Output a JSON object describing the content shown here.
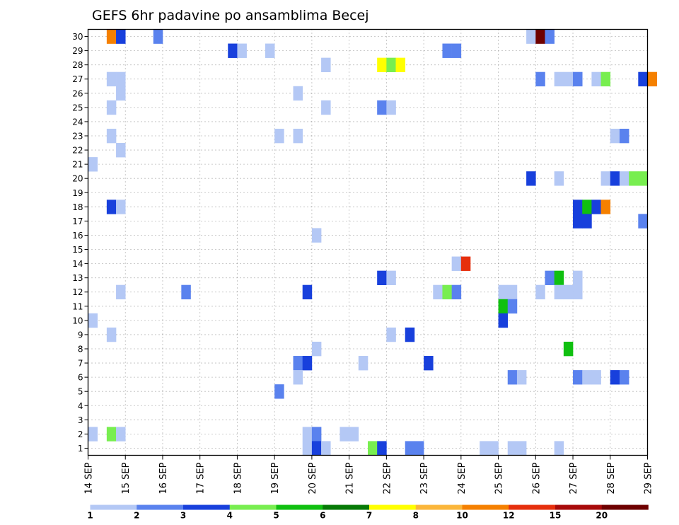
{
  "chart_data": {
    "type": "heatmap",
    "title": "GEFS 6hr padavine po ansamblima Becej",
    "xlabel": "",
    "ylabel": "",
    "x_range_days": [
      14,
      29
    ],
    "x_tick_labels": [
      "14 SEP",
      "15 SEP",
      "16 SEP",
      "17 SEP",
      "18 SEP",
      "19 SEP",
      "20 SEP",
      "21 SEP",
      "22 SEP",
      "23 SEP",
      "24 SEP",
      "25 SEP",
      "26 SEP",
      "27 SEP",
      "28 SEP",
      "29 SEP"
    ],
    "y_range": [
      1,
      30
    ],
    "y_tick_labels": [
      "1",
      "2",
      "3",
      "4",
      "5",
      "6",
      "7",
      "8",
      "9",
      "10",
      "11",
      "12",
      "13",
      "14",
      "15",
      "16",
      "17",
      "18",
      "19",
      "20",
      "21",
      "22",
      "23",
      "24",
      "25",
      "26",
      "27",
      "28",
      "29",
      "30"
    ],
    "grid": true,
    "legend": "bottom colorbar",
    "color_levels": [
      {
        "from": 1,
        "to": 2,
        "color": "#b4c8f5"
      },
      {
        "from": 2,
        "to": 3,
        "color": "#5a82ee"
      },
      {
        "from": 3,
        "to": 4,
        "color": "#1840dc"
      },
      {
        "from": 4,
        "to": 5,
        "color": "#78ee50"
      },
      {
        "from": 5,
        "to": 6,
        "color": "#10c010"
      },
      {
        "from": 6,
        "to": 7,
        "color": "#067a06"
      },
      {
        "from": 7,
        "to": 8,
        "color": "#ffff00"
      },
      {
        "from": 8,
        "to": 10,
        "color": "#fbb63a"
      },
      {
        "from": 10,
        "to": 12,
        "color": "#f58000"
      },
      {
        "from": 12,
        "to": 15,
        "color": "#e62f0d"
      },
      {
        "from": 15,
        "to": 20,
        "color": "#a80a0a"
      },
      {
        "from": 20,
        "to": 30,
        "color": "#6e0000"
      }
    ],
    "colorbar_labels": [
      "1",
      "2",
      "3",
      "4",
      "5",
      "6",
      "7",
      "8",
      "10",
      "12",
      "15",
      "20"
    ],
    "cells": [
      {
        "m": 30,
        "d": 14.5,
        "l": 9
      },
      {
        "m": 30,
        "d": 14.75,
        "l": 3
      },
      {
        "m": 30,
        "d": 15.75,
        "l": 2
      },
      {
        "m": 30,
        "d": 25.75,
        "l": 1
      },
      {
        "m": 30,
        "d": 26.0,
        "l": 12
      },
      {
        "m": 30,
        "d": 26.25,
        "l": 2
      },
      {
        "m": 29,
        "d": 17.75,
        "l": 3
      },
      {
        "m": 29,
        "d": 18.0,
        "l": 1
      },
      {
        "m": 29,
        "d": 18.75,
        "l": 1
      },
      {
        "m": 29,
        "d": 23.5,
        "l": 2
      },
      {
        "m": 29,
        "d": 23.75,
        "l": 2
      },
      {
        "m": 28,
        "d": 20.25,
        "l": 1
      },
      {
        "m": 28,
        "d": 21.75,
        "l": 7
      },
      {
        "m": 28,
        "d": 22.0,
        "l": 4
      },
      {
        "m": 28,
        "d": 22.25,
        "l": 7
      },
      {
        "m": 27,
        "d": 14.5,
        "l": 1
      },
      {
        "m": 27,
        "d": 14.75,
        "l": 1
      },
      {
        "m": 27,
        "d": 26.0,
        "l": 2
      },
      {
        "m": 27,
        "d": 26.5,
        "l": 1
      },
      {
        "m": 27,
        "d": 26.75,
        "l": 1
      },
      {
        "m": 27,
        "d": 27.0,
        "l": 2
      },
      {
        "m": 27,
        "d": 27.5,
        "l": 1
      },
      {
        "m": 27,
        "d": 27.75,
        "l": 4
      },
      {
        "m": 27,
        "d": 28.75,
        "l": 3
      },
      {
        "m": 27,
        "d": 29.0,
        "l": 9
      },
      {
        "m": 26,
        "d": 14.75,
        "l": 1
      },
      {
        "m": 26,
        "d": 19.5,
        "l": 1
      },
      {
        "m": 25,
        "d": 14.5,
        "l": 1
      },
      {
        "m": 25,
        "d": 20.25,
        "l": 1
      },
      {
        "m": 25,
        "d": 21.75,
        "l": 2
      },
      {
        "m": 25,
        "d": 22.0,
        "l": 1
      },
      {
        "m": 23,
        "d": 14.5,
        "l": 1
      },
      {
        "m": 23,
        "d": 19.0,
        "l": 1
      },
      {
        "m": 23,
        "d": 19.5,
        "l": 1
      },
      {
        "m": 23,
        "d": 28.0,
        "l": 1
      },
      {
        "m": 23,
        "d": 28.25,
        "l": 2
      },
      {
        "m": 22,
        "d": 14.75,
        "l": 1
      },
      {
        "m": 21,
        "d": 14.0,
        "l": 1
      },
      {
        "m": 20,
        "d": 25.75,
        "l": 3
      },
      {
        "m": 20,
        "d": 26.5,
        "l": 1
      },
      {
        "m": 20,
        "d": 27.75,
        "l": 1
      },
      {
        "m": 20,
        "d": 28.0,
        "l": 3
      },
      {
        "m": 20,
        "d": 28.25,
        "l": 1
      },
      {
        "m": 20,
        "d": 28.5,
        "l": 4
      },
      {
        "m": 20,
        "d": 28.75,
        "l": 4
      },
      {
        "m": 18,
        "d": 14.5,
        "l": 3
      },
      {
        "m": 18,
        "d": 14.75,
        "l": 1
      },
      {
        "m": 18,
        "d": 27.0,
        "l": 3
      },
      {
        "m": 18,
        "d": 27.25,
        "l": 5
      },
      {
        "m": 18,
        "d": 27.5,
        "l": 3
      },
      {
        "m": 18,
        "d": 27.75,
        "l": 9
      },
      {
        "m": 17,
        "d": 27.0,
        "l": 3
      },
      {
        "m": 17,
        "d": 27.25,
        "l": 3
      },
      {
        "m": 17,
        "d": 28.75,
        "l": 2
      },
      {
        "m": 16,
        "d": 20.0,
        "l": 1
      },
      {
        "m": 14,
        "d": 23.75,
        "l": 1
      },
      {
        "m": 14,
        "d": 24.0,
        "l": 10
      },
      {
        "m": 13,
        "d": 21.75,
        "l": 3
      },
      {
        "m": 13,
        "d": 22.0,
        "l": 1
      },
      {
        "m": 13,
        "d": 26.25,
        "l": 2
      },
      {
        "m": 13,
        "d": 26.5,
        "l": 5
      },
      {
        "m": 13,
        "d": 27.0,
        "l": 1
      },
      {
        "m": 12,
        "d": 14.75,
        "l": 1
      },
      {
        "m": 12,
        "d": 16.5,
        "l": 2
      },
      {
        "m": 12,
        "d": 19.75,
        "l": 3
      },
      {
        "m": 12,
        "d": 23.25,
        "l": 1
      },
      {
        "m": 12,
        "d": 23.5,
        "l": 4
      },
      {
        "m": 12,
        "d": 23.75,
        "l": 2
      },
      {
        "m": 12,
        "d": 25.0,
        "l": 1
      },
      {
        "m": 12,
        "d": 25.25,
        "l": 1
      },
      {
        "m": 12,
        "d": 26.0,
        "l": 1
      },
      {
        "m": 12,
        "d": 26.5,
        "l": 1
      },
      {
        "m": 12,
        "d": 26.75,
        "l": 1
      },
      {
        "m": 12,
        "d": 27.0,
        "l": 1
      },
      {
        "m": 11,
        "d": 25.0,
        "l": 5
      },
      {
        "m": 11,
        "d": 25.25,
        "l": 2
      },
      {
        "m": 10,
        "d": 14.0,
        "l": 1
      },
      {
        "m": 10,
        "d": 25.0,
        "l": 3
      },
      {
        "m": 9,
        "d": 14.5,
        "l": 1
      },
      {
        "m": 9,
        "d": 22.0,
        "l": 1
      },
      {
        "m": 9,
        "d": 22.5,
        "l": 3
      },
      {
        "m": 8,
        "d": 20.0,
        "l": 1
      },
      {
        "m": 8,
        "d": 26.75,
        "l": 5
      },
      {
        "m": 7,
        "d": 19.5,
        "l": 2
      },
      {
        "m": 7,
        "d": 19.75,
        "l": 3
      },
      {
        "m": 7,
        "d": 21.25,
        "l": 1
      },
      {
        "m": 7,
        "d": 23.0,
        "l": 3
      },
      {
        "m": 6,
        "d": 19.5,
        "l": 1
      },
      {
        "m": 6,
        "d": 25.25,
        "l": 2
      },
      {
        "m": 6,
        "d": 25.5,
        "l": 1
      },
      {
        "m": 6,
        "d": 27.0,
        "l": 2
      },
      {
        "m": 6,
        "d": 27.25,
        "l": 1
      },
      {
        "m": 6,
        "d": 27.5,
        "l": 1
      },
      {
        "m": 6,
        "d": 28.0,
        "l": 3
      },
      {
        "m": 6,
        "d": 28.25,
        "l": 2
      },
      {
        "m": 5,
        "d": 19.0,
        "l": 2
      },
      {
        "m": 2,
        "d": 14.0,
        "l": 1
      },
      {
        "m": 2,
        "d": 14.5,
        "l": 4
      },
      {
        "m": 2,
        "d": 14.75,
        "l": 1
      },
      {
        "m": 2,
        "d": 19.75,
        "l": 1
      },
      {
        "m": 2,
        "d": 20.0,
        "l": 2
      },
      {
        "m": 2,
        "d": 20.75,
        "l": 1
      },
      {
        "m": 2,
        "d": 21.0,
        "l": 1
      },
      {
        "m": 1,
        "d": 19.75,
        "l": 1
      },
      {
        "m": 1,
        "d": 20.0,
        "l": 3
      },
      {
        "m": 1,
        "d": 20.25,
        "l": 1
      },
      {
        "m": 1,
        "d": 21.5,
        "l": 4
      },
      {
        "m": 1,
        "d": 21.75,
        "l": 3
      },
      {
        "m": 1,
        "d": 22.5,
        "l": 2
      },
      {
        "m": 1,
        "d": 22.75,
        "l": 2
      },
      {
        "m": 1,
        "d": 24.5,
        "l": 1
      },
      {
        "m": 1,
        "d": 24.75,
        "l": 1
      },
      {
        "m": 1,
        "d": 25.25,
        "l": 1
      },
      {
        "m": 1,
        "d": 25.5,
        "l": 1
      },
      {
        "m": 1,
        "d": 26.5,
        "l": 1
      }
    ]
  }
}
